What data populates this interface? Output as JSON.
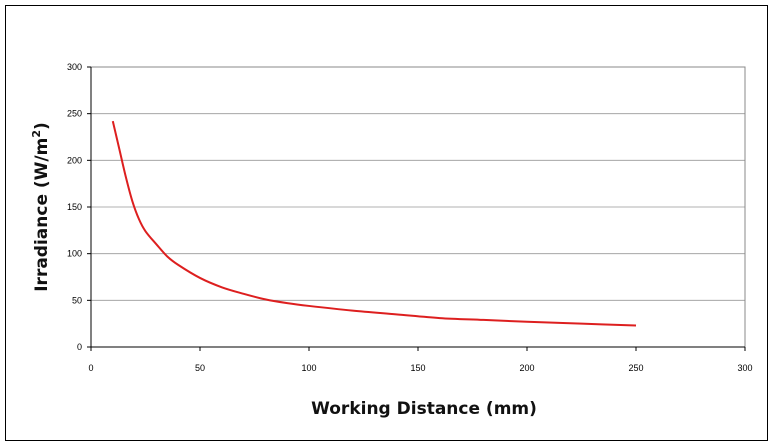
{
  "chart_data": {
    "type": "line",
    "xlabel": "Working Distance (mm)",
    "ylabel": "Irradiance (W/m",
    "ylabel_superscript": "2",
    "ylabel_suffix": ")",
    "xlim": [
      0,
      300
    ],
    "ylim": [
      0,
      300
    ],
    "xticks": [
      0,
      50,
      100,
      150,
      200,
      250,
      300
    ],
    "yticks": [
      0,
      50,
      100,
      150,
      200,
      250,
      300
    ],
    "grid": "horizontal",
    "legend": "none",
    "series": [
      {
        "color": "#dd1f1f",
        "x": [
          10,
          13,
          16,
          19,
          22,
          25,
          30,
          35,
          40,
          50,
          60,
          70,
          80,
          90,
          100,
          120,
          140,
          160,
          180,
          200,
          225,
          250
        ],
        "y": [
          242,
          212,
          182,
          156,
          137,
          124,
          110,
          97,
          88,
          74,
          64,
          57,
          51,
          47,
          44,
          39,
          35,
          31,
          29,
          27,
          25,
          23
        ]
      }
    ]
  }
}
